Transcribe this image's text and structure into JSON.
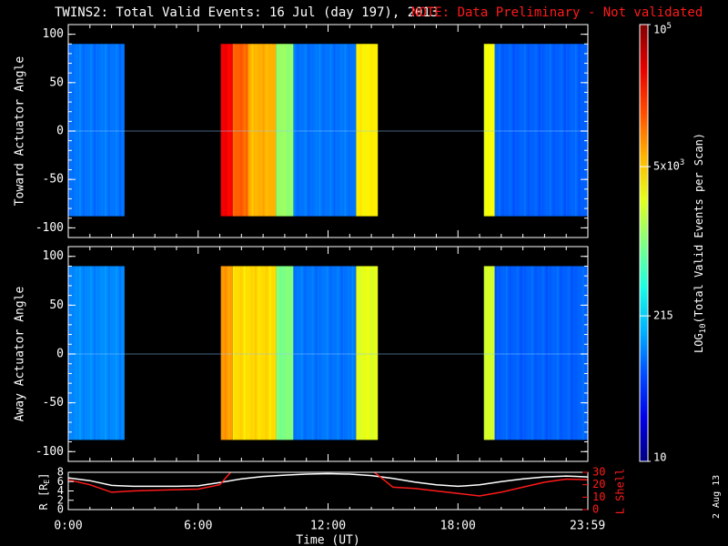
{
  "header": {
    "title": "TWINS2: Total Valid Events: 16 Jul (day 197), 2013",
    "note": "NOTE: Data Preliminary - Not validated",
    "note_color": "#ff1a1a"
  },
  "side_stamp": "2 Aug 13",
  "colorbar": {
    "label_pre": "LOG",
    "label_sub": "10",
    "label_post": "(Total Valid Events per Scan)",
    "ticks": [
      {
        "label": "10",
        "value": 10
      },
      {
        "label": "215",
        "value": 215
      },
      {
        "label": "5x10",
        "sup": "3",
        "value": 5000
      },
      {
        "label": "10",
        "sup": "5",
        "value": 100000
      }
    ],
    "range": [
      10,
      100000
    ],
    "scale": "log"
  },
  "chart_data": [
    {
      "type": "heatmap",
      "name": "toward",
      "ylabel": "Toward Actuator Angle",
      "ylim": [
        -110,
        110
      ],
      "yticks": [
        100,
        50,
        0,
        -50,
        -100
      ],
      "y_data_range": [
        -88,
        90
      ],
      "xlim": [
        0,
        24
      ],
      "segments": [
        {
          "t0": 0.0,
          "t1": 2.6,
          "level": 0.24
        },
        {
          "t0": 7.05,
          "t1": 7.6,
          "level": 0.88
        },
        {
          "t0": 7.6,
          "t1": 8.3,
          "level": 0.78
        },
        {
          "t0": 8.3,
          "t1": 9.6,
          "level": 0.7
        },
        {
          "t0": 9.6,
          "t1": 10.4,
          "level": 0.52
        },
        {
          "t0": 10.4,
          "t1": 13.3,
          "level": 0.24
        },
        {
          "t0": 13.3,
          "t1": 14.3,
          "level": 0.64
        },
        {
          "t0": 19.2,
          "t1": 19.7,
          "level": 0.62
        },
        {
          "t0": 19.7,
          "t1": 24.0,
          "level": 0.22
        }
      ]
    },
    {
      "type": "heatmap",
      "name": "away",
      "ylabel": "Away Actuator Angle",
      "ylim": [
        -110,
        110
      ],
      "yticks": [
        100,
        50,
        0,
        -50,
        -100
      ],
      "y_data_range": [
        -88,
        90
      ],
      "xlim": [
        0,
        24
      ],
      "segments": [
        {
          "t0": 0.0,
          "t1": 2.6,
          "level": 0.26
        },
        {
          "t0": 7.05,
          "t1": 7.6,
          "level": 0.72
        },
        {
          "t0": 7.6,
          "t1": 9.6,
          "level": 0.66
        },
        {
          "t0": 9.6,
          "t1": 10.4,
          "level": 0.5
        },
        {
          "t0": 10.4,
          "t1": 13.3,
          "level": 0.24
        },
        {
          "t0": 13.3,
          "t1": 14.3,
          "level": 0.6
        },
        {
          "t0": 19.2,
          "t1": 19.7,
          "level": 0.58
        },
        {
          "t0": 19.7,
          "t1": 24.0,
          "level": 0.22
        }
      ]
    },
    {
      "type": "line",
      "name": "orbit",
      "xlabel": "Time (UT)",
      "ylabel_left": "R [R",
      "ylabel_left_sub": "E",
      "ylabel_left_end": "]",
      "ylabel_right": "L Shell",
      "ylim_left": [
        0,
        8
      ],
      "yticks_left": [
        0,
        2,
        4,
        6,
        8
      ],
      "ylim_right": [
        0,
        30
      ],
      "yticks_right": [
        0,
        10,
        20,
        30
      ],
      "xlim": [
        0,
        24
      ],
      "xticks": [
        {
          "t": 0,
          "label": "0:00"
        },
        {
          "t": 6,
          "label": "6:00"
        },
        {
          "t": 12,
          "label": "12:00"
        },
        {
          "t": 18,
          "label": "18:00"
        },
        {
          "t": 23.983,
          "label": "23:59"
        }
      ],
      "series": [
        {
          "axis": "left",
          "color": "#ffffff",
          "x": [
            0,
            1,
            2,
            3,
            4,
            5,
            6,
            7,
            8,
            9,
            10,
            11,
            12,
            13,
            14,
            15,
            16,
            17,
            18,
            19,
            20,
            21,
            22,
            23,
            24
          ],
          "y": [
            6.8,
            6.2,
            5.2,
            5.0,
            5.0,
            5.0,
            5.1,
            5.8,
            6.6,
            7.1,
            7.4,
            7.6,
            7.7,
            7.6,
            7.3,
            6.7,
            5.9,
            5.3,
            5.0,
            5.3,
            6.0,
            6.6,
            7.0,
            7.2,
            7.0
          ]
        },
        {
          "axis": "right",
          "color": "#ff1a1a",
          "x": [
            0,
            1,
            2,
            3,
            4,
            5,
            6,
            7,
            7.6,
            14.0,
            15,
            16,
            17,
            18,
            19,
            20,
            21,
            22,
            23,
            24
          ],
          "y": [
            24,
            20,
            14,
            15,
            15.5,
            16,
            16.5,
            20,
            32,
            32,
            18,
            17,
            15,
            13,
            11,
            14,
            18,
            22,
            24.5,
            24
          ]
        }
      ]
    }
  ]
}
